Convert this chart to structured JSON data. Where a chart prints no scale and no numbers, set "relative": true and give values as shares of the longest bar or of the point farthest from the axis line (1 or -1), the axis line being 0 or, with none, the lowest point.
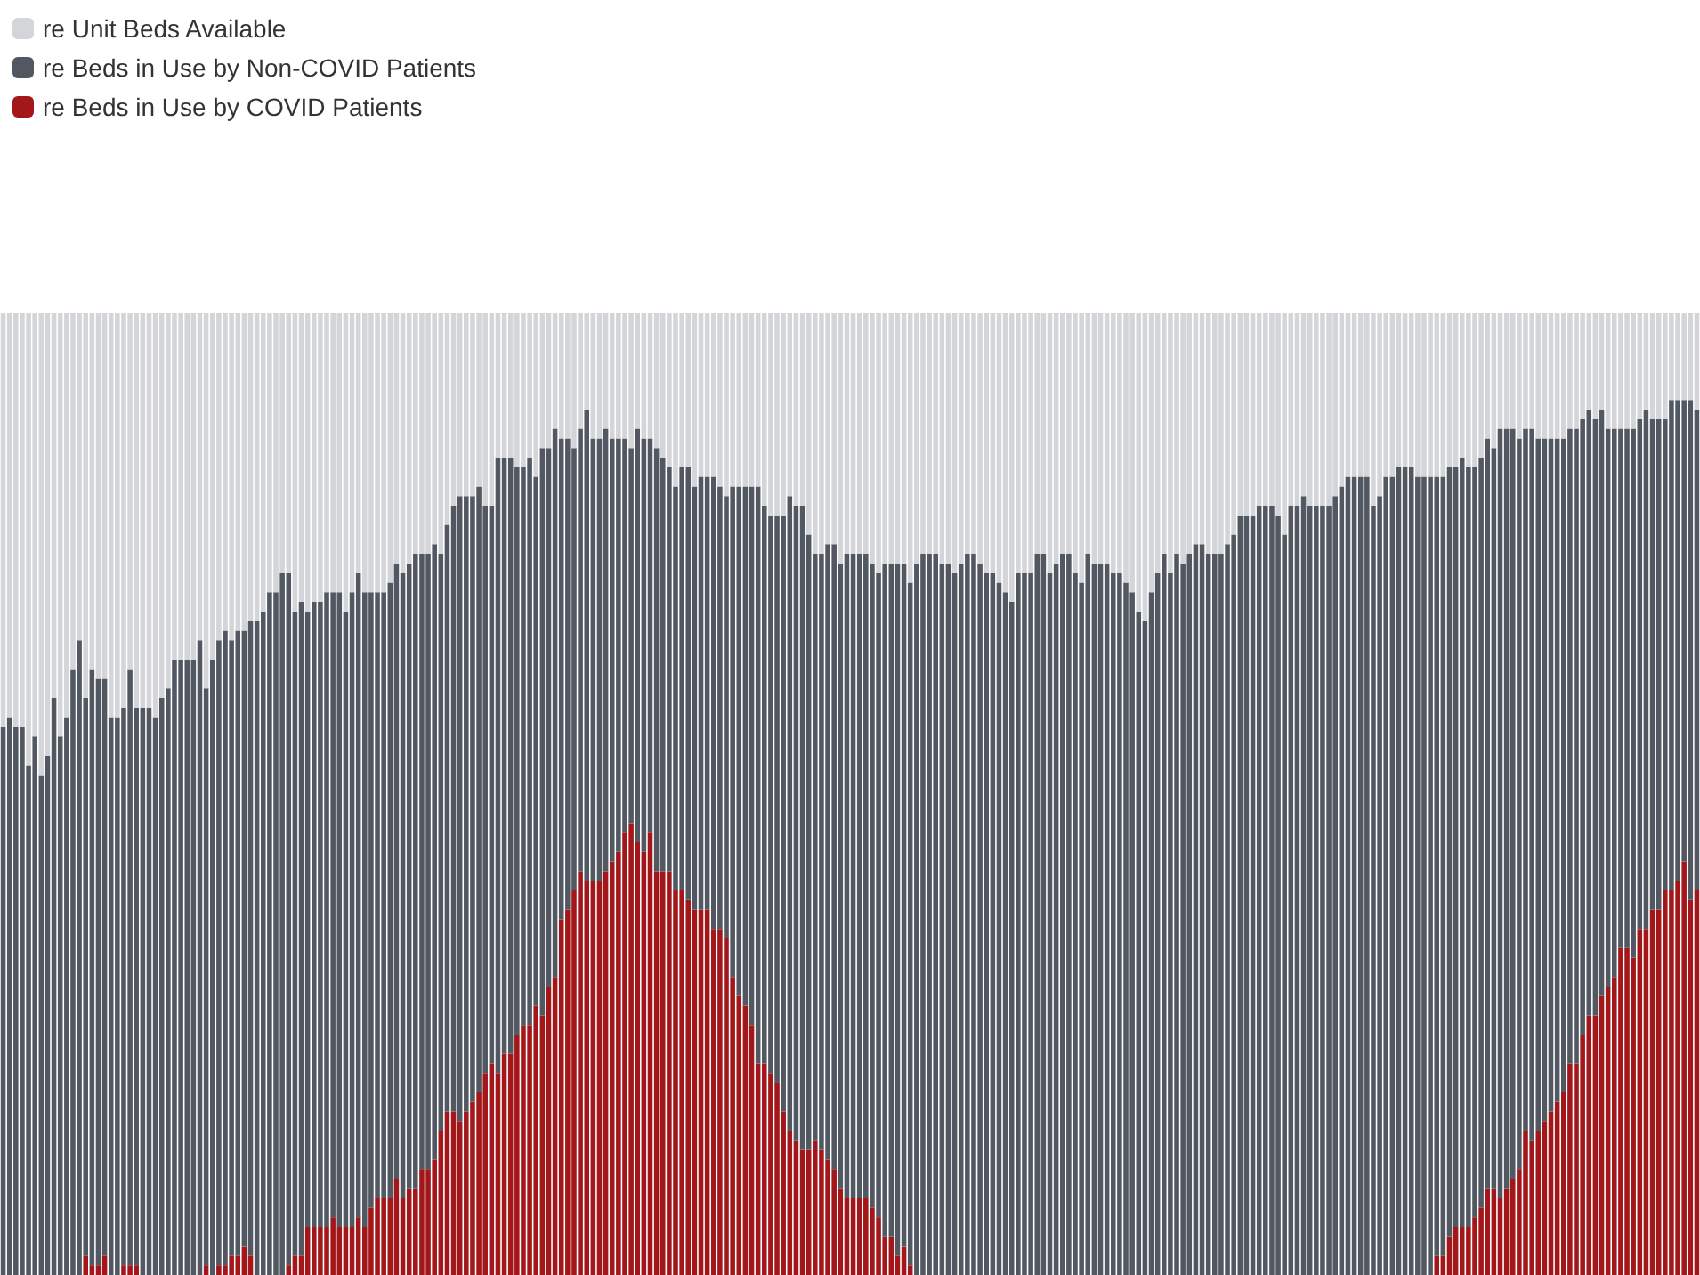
{
  "chart_data": {
    "type": "bar",
    "stacked": true,
    "relative": true,
    "legend": "top left",
    "categories": [
      null,
      null,
      null,
      null,
      null,
      null,
      null,
      null,
      null,
      null,
      null,
      null,
      null,
      null,
      null,
      null,
      null,
      null,
      null,
      null,
      null,
      null,
      null,
      null,
      null,
      null,
      null,
      null,
      null,
      null,
      null,
      null,
      null,
      null,
      null,
      null,
      null,
      null,
      null,
      null,
      null,
      null,
      null,
      null,
      null,
      null,
      null,
      null,
      null,
      null,
      null,
      null,
      null,
      null,
      null,
      null,
      null,
      null,
      null,
      null,
      null,
      null,
      null,
      null,
      null,
      null,
      null,
      null,
      null,
      null,
      null,
      null,
      null,
      null,
      null,
      null,
      null,
      null,
      null,
      null,
      null,
      null,
      null,
      null,
      null,
      null,
      null,
      null,
      null,
      null,
      null,
      null,
      null,
      null,
      null,
      null,
      null,
      null,
      null,
      null,
      null,
      null,
      null,
      null,
      null,
      null,
      null,
      null,
      null,
      null,
      null,
      null,
      null,
      null,
      null,
      null,
      null,
      null,
      null,
      null,
      null,
      null,
      null,
      null,
      null,
      null,
      null,
      null,
      null,
      null,
      null,
      null,
      null,
      null,
      null,
      null,
      null,
      null,
      null,
      null,
      null,
      null,
      null,
      null,
      null,
      null,
      null,
      null,
      null,
      null,
      null,
      null,
      null,
      null,
      null,
      null,
      null,
      null,
      null,
      null,
      null,
      null,
      null,
      null,
      null,
      null,
      null,
      null,
      null,
      null,
      null,
      null,
      null,
      null,
      null,
      null,
      null,
      null,
      null,
      null,
      null,
      null,
      null,
      null,
      null,
      null,
      null,
      null,
      null,
      null,
      null,
      null,
      null,
      null,
      null,
      null,
      null,
      null,
      null,
      null,
      null,
      null,
      null,
      null,
      null,
      null,
      null,
      null,
      null,
      null,
      null,
      null,
      null,
      null,
      null,
      null,
      null,
      null,
      null,
      null,
      null,
      null,
      null,
      null,
      null,
      null,
      null,
      null,
      null,
      null,
      null,
      null,
      null,
      null,
      null,
      null,
      null,
      null,
      null,
      null,
      null,
      null,
      null,
      null,
      null,
      null,
      null,
      null,
      null,
      null,
      null,
      null,
      null,
      null,
      null,
      null,
      null,
      null,
      null,
      null,
      null,
      null,
      null,
      null,
      null,
      null,
      null,
      null
    ],
    "series": [
      {
        "name": "re Beds in Use by COVID Patients",
        "color": "#a3171b",
        "values": [
          0,
          0,
          0,
          0,
          0,
          0,
          0,
          0,
          0,
          0,
          0,
          0,
          0,
          0.02,
          0.01,
          0.01,
          0.02,
          0,
          0,
          0.01,
          0.01,
          0.01,
          0,
          0,
          0,
          0,
          0,
          0,
          0,
          0,
          0,
          0,
          0.01,
          0,
          0.01,
          0.01,
          0.02,
          0.02,
          0.03,
          0.02,
          0,
          0,
          0,
          0,
          0,
          0.01,
          0.02,
          0.02,
          0.05,
          0.05,
          0.05,
          0.05,
          0.06,
          0.05,
          0.05,
          0.05,
          0.06,
          0.05,
          0.07,
          0.08,
          0.08,
          0.08,
          0.1,
          0.08,
          0.09,
          0.09,
          0.11,
          0.11,
          0.12,
          0.15,
          0.17,
          0.17,
          0.16,
          0.17,
          0.18,
          0.19,
          0.21,
          0.22,
          0.21,
          0.23,
          0.23,
          0.25,
          0.26,
          0.26,
          0.28,
          0.27,
          0.3,
          0.31,
          0.37,
          0.38,
          0.4,
          0.42,
          0.41,
          0.41,
          0.41,
          0.42,
          0.43,
          0.44,
          0.46,
          0.47,
          0.45,
          0.44,
          0.46,
          0.42,
          0.42,
          0.42,
          0.4,
          0.4,
          0.39,
          0.38,
          0.38,
          0.38,
          0.36,
          0.36,
          0.35,
          0.31,
          0.29,
          0.28,
          0.26,
          0.22,
          0.22,
          0.21,
          0.2,
          0.17,
          0.15,
          0.14,
          0.13,
          0.13,
          0.14,
          0.13,
          0.12,
          0.11,
          0.09,
          0.08,
          0.08,
          0.08,
          0.08,
          0.07,
          0.06,
          0.04,
          0.04,
          0.02,
          0.03,
          0.01,
          0,
          0,
          0,
          0,
          0,
          0,
          0,
          0,
          0,
          0,
          0,
          0,
          0,
          0,
          0,
          0,
          0,
          0,
          0,
          0,
          0,
          0,
          0,
          0,
          0,
          0,
          0,
          0,
          0,
          0,
          0,
          0,
          0,
          0,
          0,
          0,
          0,
          0,
          0,
          0,
          0,
          0,
          0,
          0,
          0,
          0,
          0,
          0,
          0,
          0,
          0,
          0,
          0,
          0,
          0,
          0,
          0,
          0,
          0,
          0,
          0,
          0,
          0,
          0,
          0,
          0,
          0,
          0,
          0,
          0,
          0,
          0,
          0,
          0,
          0,
          0,
          0,
          0,
          0,
          0,
          0,
          0,
          0.02,
          0.02,
          0.04,
          0.05,
          0.05,
          0.05,
          0.06,
          0.07,
          0.09,
          0.09,
          0.08,
          0.09,
          0.1,
          0.11,
          0.15,
          0.14,
          0.15,
          0.16,
          0.17,
          0.18,
          0.19,
          0.22,
          0.22,
          0.25,
          0.27,
          0.27,
          0.29,
          0.3,
          0.31,
          0.34,
          0.34,
          0.33,
          0.36,
          0.36,
          0.38,
          0.38,
          0.4,
          0.4,
          0.41,
          0.43,
          0.39,
          0.4
        ]
      },
      {
        "name": "re Beds in Use by Non-COVID Patients",
        "color": "#515861",
        "values": [
          0.57,
          0.58,
          0.57,
          0.57,
          0.53,
          0.56,
          0.52,
          0.54,
          0.6,
          0.56,
          0.58,
          0.63,
          0.66,
          0.58,
          0.62,
          0.61,
          0.6,
          0.58,
          0.58,
          0.58,
          0.62,
          0.58,
          0.59,
          0.59,
          0.58,
          0.6,
          0.61,
          0.64,
          0.64,
          0.64,
          0.64,
          0.66,
          0.6,
          0.64,
          0.65,
          0.66,
          0.64,
          0.65,
          0.64,
          0.66,
          0.68,
          0.69,
          0.71,
          0.71,
          0.73,
          0.72,
          0.67,
          0.68,
          0.64,
          0.65,
          0.65,
          0.66,
          0.65,
          0.66,
          0.64,
          0.66,
          0.67,
          0.66,
          0.64,
          0.63,
          0.63,
          0.64,
          0.64,
          0.65,
          0.65,
          0.66,
          0.64,
          0.64,
          0.64,
          0.6,
          0.61,
          0.63,
          0.65,
          0.64,
          0.63,
          0.63,
          0.59,
          0.58,
          0.64,
          0.62,
          0.62,
          0.59,
          0.58,
          0.59,
          0.55,
          0.59,
          0.56,
          0.57,
          0.5,
          0.49,
          0.46,
          0.46,
          0.49,
          0.46,
          0.46,
          0.46,
          0.44,
          0.43,
          0.41,
          0.39,
          0.43,
          0.43,
          0.41,
          0.44,
          0.43,
          0.42,
          0.42,
          0.44,
          0.45,
          0.44,
          0.45,
          0.45,
          0.47,
          0.46,
          0.46,
          0.51,
          0.53,
          0.54,
          0.56,
          0.6,
          0.58,
          0.58,
          0.59,
          0.62,
          0.66,
          0.66,
          0.67,
          0.64,
          0.61,
          0.62,
          0.64,
          0.65,
          0.65,
          0.67,
          0.67,
          0.67,
          0.67,
          0.67,
          0.67,
          0.7,
          0.7,
          0.72,
          0.71,
          0.71,
          0.74,
          0.75,
          0.75,
          0.75,
          0.74,
          0.74,
          0.73,
          0.74,
          0.75,
          0.75,
          0.74,
          0.73,
          0.73,
          0.72,
          0.71,
          0.7,
          0.73,
          0.73,
          0.73,
          0.75,
          0.75,
          0.73,
          0.74,
          0.75,
          0.75,
          0.73,
          0.72,
          0.75,
          0.74,
          0.74,
          0.74,
          0.73,
          0.73,
          0.72,
          0.71,
          0.69,
          0.68,
          0.71,
          0.73,
          0.75,
          0.73,
          0.75,
          0.74,
          0.75,
          0.76,
          0.76,
          0.75,
          0.75,
          0.75,
          0.76,
          0.77,
          0.79,
          0.79,
          0.79,
          0.8,
          0.8,
          0.8,
          0.79,
          0.77,
          0.8,
          0.8,
          0.81,
          0.8,
          0.8,
          0.8,
          0.8,
          0.81,
          0.82,
          0.83,
          0.83,
          0.83,
          0.83,
          0.8,
          0.81,
          0.83,
          0.83,
          0.84,
          0.84,
          0.84,
          0.83,
          0.83,
          0.83,
          0.81,
          0.81,
          0.8,
          0.79,
          0.8,
          0.79,
          0.78,
          0.78,
          0.78,
          0.77,
          0.8,
          0.79,
          0.78,
          0.76,
          0.73,
          0.74,
          0.72,
          0.71,
          0.7,
          0.69,
          0.68,
          0.66,
          0.66,
          0.64,
          0.63,
          0.62,
          0.61,
          0.58,
          0.57,
          0.54,
          0.54,
          0.55,
          0.53,
          0.54,
          0.51,
          0.51,
          0.49,
          0.51,
          0.5,
          0.48,
          0.52,
          0.5
        ]
      },
      {
        "name": "re Unit Beds Available",
        "color": "#d3d5d8",
        "values": [
          0.43,
          0.42,
          0.43,
          0.43,
          0.47,
          0.44,
          0.48,
          0.46,
          0.4,
          0.44,
          0.42,
          0.37,
          0.34,
          0.4,
          0.37,
          0.38,
          0.38,
          0.42,
          0.42,
          0.41,
          0.37,
          0.41,
          0.41,
          0.41,
          0.42,
          0.4,
          0.39,
          0.36,
          0.36,
          0.36,
          0.36,
          0.34,
          0.39,
          0.36,
          0.34,
          0.33,
          0.34,
          0.33,
          0.33,
          0.32,
          0.32,
          0.31,
          0.29,
          0.29,
          0.27,
          0.27,
          0.31,
          0.3,
          0.31,
          0.3,
          0.3,
          0.29,
          0.29,
          0.29,
          0.31,
          0.29,
          0.27,
          0.29,
          0.29,
          0.29,
          0.29,
          0.28,
          0.26,
          0.27,
          0.26,
          0.25,
          0.25,
          0.25,
          0.24,
          0.25,
          0.22,
          0.2,
          0.19,
          0.19,
          0.19,
          0.18,
          0.2,
          0.2,
          0.15,
          0.15,
          0.15,
          0.16,
          0.16,
          0.15,
          0.17,
          0.14,
          0.14,
          0.12,
          0.13,
          0.13,
          0.14,
          0.12,
          0.1,
          0.13,
          0.13,
          0.12,
          0.13,
          0.13,
          0.13,
          0.14,
          0.12,
          0.13,
          0.13,
          0.14,
          0.15,
          0.16,
          0.18,
          0.16,
          0.16,
          0.18,
          0.17,
          0.17,
          0.17,
          0.18,
          0.19,
          0.18,
          0.18,
          0.18,
          0.18,
          0.18,
          0.2,
          0.21,
          0.21,
          0.21,
          0.19,
          0.2,
          0.2,
          0.23,
          0.25,
          0.25,
          0.24,
          0.24,
          0.26,
          0.25,
          0.25,
          0.25,
          0.25,
          0.26,
          0.27,
          0.26,
          0.26,
          0.26,
          0.26,
          0.28,
          0.26,
          0.25,
          0.25,
          0.25,
          0.26,
          0.26,
          0.27,
          0.26,
          0.25,
          0.25,
          0.26,
          0.27,
          0.27,
          0.28,
          0.29,
          0.3,
          0.27,
          0.27,
          0.27,
          0.25,
          0.25,
          0.27,
          0.26,
          0.25,
          0.25,
          0.27,
          0.28,
          0.25,
          0.26,
          0.26,
          0.26,
          0.27,
          0.27,
          0.28,
          0.29,
          0.31,
          0.32,
          0.29,
          0.27,
          0.25,
          0.27,
          0.25,
          0.26,
          0.25,
          0.24,
          0.24,
          0.25,
          0.25,
          0.25,
          0.24,
          0.23,
          0.21,
          0.21,
          0.21,
          0.2,
          0.2,
          0.2,
          0.21,
          0.23,
          0.2,
          0.2,
          0.19,
          0.2,
          0.2,
          0.2,
          0.2,
          0.19,
          0.18,
          0.17,
          0.17,
          0.17,
          0.17,
          0.2,
          0.19,
          0.17,
          0.17,
          0.16,
          0.16,
          0.16,
          0.17,
          0.17,
          0.17,
          0.17,
          0.17,
          0.16,
          0.16,
          0.15,
          0.16,
          0.16,
          0.15,
          0.13,
          0.14,
          0.12,
          0.12,
          0.12,
          0.13,
          0.12,
          0.12,
          0.13,
          0.13,
          0.13,
          0.13,
          0.13,
          0.12,
          0.12,
          0.11,
          0.1,
          0.11,
          0.1,
          0.12,
          0.12,
          0.12,
          0.12,
          0.12,
          0.11,
          0.1,
          0.11,
          0.11,
          0.11,
          0.09,
          0.09,
          0.09,
          0.09,
          0.1
        ]
      }
    ]
  }
}
